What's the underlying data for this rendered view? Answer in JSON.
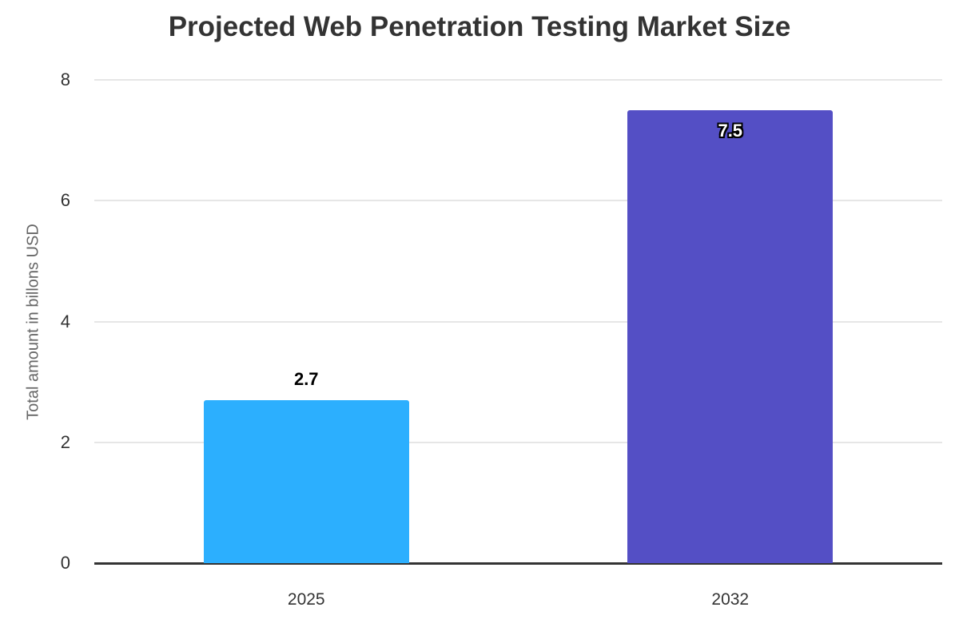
{
  "chart_data": {
    "type": "bar",
    "title": "Projected Web Penetration Testing Market Size",
    "xlabel": "",
    "ylabel": "Total amount in billons USD",
    "categories": [
      "2025",
      "2032"
    ],
    "values": [
      2.7,
      7.5
    ],
    "value_labels": [
      "2.7",
      "7.5"
    ],
    "value_label_inside": [
      false,
      true
    ],
    "bar_colors": [
      "#2CAFFE",
      "#544FC5"
    ],
    "ylim": [
      0,
      8
    ],
    "yticks": [
      0,
      2,
      4,
      6,
      8
    ],
    "grid": true,
    "legend": false,
    "styles": {
      "background": "#ffffff",
      "title_color": "#333333",
      "tick_label_color": "#333333",
      "axis_title_color": "#666666",
      "gridline_color": "#e6e6e6",
      "axis_line_color": "#333333",
      "data_label_outside_color": "#000000",
      "data_label_inside_color": "#ffffff",
      "data_label_inside_outline": "#000000"
    }
  }
}
